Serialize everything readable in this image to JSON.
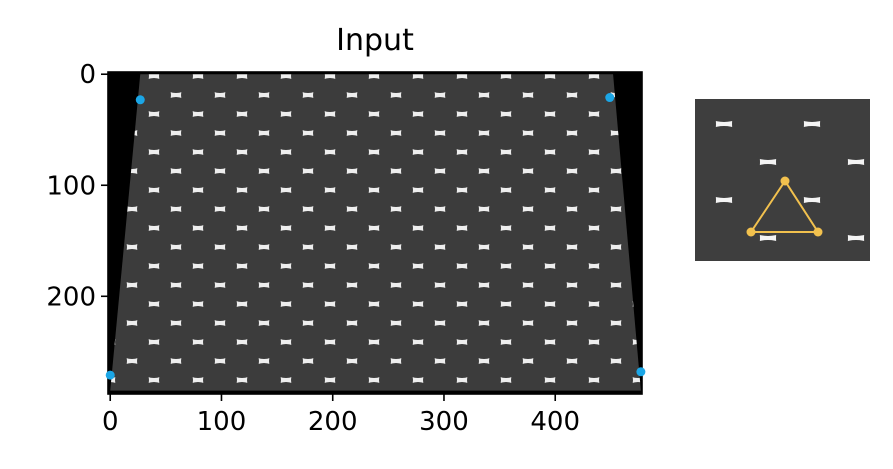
{
  "title": "Input",
  "axes": {
    "x_ticks": [
      "0",
      "100",
      "200",
      "300",
      "400"
    ],
    "y_ticks": [
      "0",
      "100",
      "200"
    ]
  },
  "chart_data": {
    "type": "scatter",
    "title": "Input",
    "xlim": [
      -2,
      478
    ],
    "ylim": [
      288,
      -2
    ],
    "x_ticks": [
      0,
      100,
      200,
      300,
      400
    ],
    "y_ticks": [
      0,
      100,
      200
    ],
    "series": [
      {
        "points": [
          {
            "x": 27,
            "y": 23
          },
          {
            "x": 449,
            "y": 21
          },
          {
            "x": 0,
            "y": 271
          },
          {
            "x": 477,
            "y": 268
          }
        ],
        "color": "#1ba6e6"
      }
    ],
    "image_corners": [
      {
        "x": 27,
        "y": 0
      },
      {
        "x": 452,
        "y": 0
      },
      {
        "x": 477,
        "y": 285
      },
      {
        "x": 0,
        "y": 285
      }
    ]
  },
  "inset": {
    "triangle_color": "#f2c14e",
    "tile_color": "#ffffff",
    "hole_color": "#3e3e3e"
  }
}
